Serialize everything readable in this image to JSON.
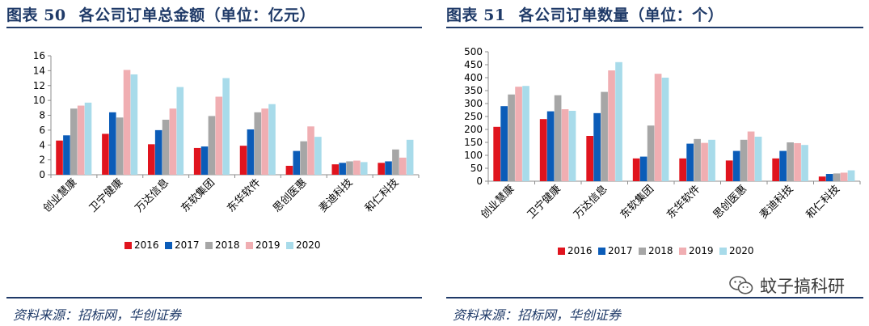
{
  "colors": {
    "title": "#1f3a68",
    "series": [
      "#e0141e",
      "#0b5cb8",
      "#a6a6a6",
      "#f0aeb2",
      "#a8dbea"
    ]
  },
  "left": {
    "label": "图表 50",
    "title": "各公司订单总金额（单位：亿元）",
    "source": "资料来源：招标网，华创证券"
  },
  "right": {
    "label": "图表 51",
    "title": "各公司订单数量（单位：个）",
    "source": "资料来源：招标网，华创证券"
  },
  "watermark": {
    "text": "蚊子搞科研",
    "icon": "wechat-icon"
  },
  "chart_data": [
    {
      "type": "bar",
      "categories": [
        "创业慧康",
        "卫宁健康",
        "万达信息",
        "东软集团",
        "东华软件",
        "思创医惠",
        "麦迪科技",
        "和仁科技"
      ],
      "series": [
        {
          "name": "2016",
          "values": [
            4.6,
            5.5,
            4.1,
            3.6,
            3.9,
            1.2,
            1.4,
            1.6
          ]
        },
        {
          "name": "2017",
          "values": [
            5.3,
            8.4,
            6.0,
            3.8,
            6.1,
            3.2,
            1.6,
            1.8
          ]
        },
        {
          "name": "2018",
          "values": [
            8.9,
            7.7,
            7.4,
            7.9,
            8.4,
            4.5,
            1.8,
            3.4
          ]
        },
        {
          "name": "2019",
          "values": [
            9.3,
            14.1,
            8.9,
            10.5,
            8.9,
            6.5,
            1.9,
            2.3
          ]
        },
        {
          "name": "2020",
          "values": [
            9.7,
            13.5,
            11.8,
            13.0,
            9.5,
            5.1,
            1.7,
            4.7
          ]
        }
      ],
      "ylim": [
        0,
        16
      ],
      "yticks": [
        0,
        2,
        4,
        6,
        8,
        10,
        12,
        14,
        16
      ],
      "grid": false,
      "legend": "bottom"
    },
    {
      "type": "bar",
      "categories": [
        "创业慧康",
        "卫宁健康",
        "万达信息",
        "东软集团",
        "东华软件",
        "思创医惠",
        "麦迪科技",
        "和仁科技"
      ],
      "series": [
        {
          "name": "2016",
          "values": [
            210,
            240,
            175,
            88,
            88,
            80,
            88,
            18
          ]
        },
        {
          "name": "2017",
          "values": [
            290,
            270,
            263,
            95,
            145,
            117,
            117,
            28
          ]
        },
        {
          "name": "2018",
          "values": [
            335,
            332,
            345,
            215,
            163,
            160,
            150,
            30
          ]
        },
        {
          "name": "2019",
          "values": [
            365,
            278,
            428,
            415,
            148,
            192,
            147,
            33
          ]
        },
        {
          "name": "2020",
          "values": [
            368,
            272,
            460,
            400,
            160,
            172,
            140,
            42
          ]
        }
      ],
      "ylim": [
        0,
        500
      ],
      "yticks": [
        0,
        50,
        100,
        150,
        200,
        250,
        300,
        350,
        400,
        450,
        500
      ],
      "grid": false,
      "legend": "bottom"
    }
  ]
}
